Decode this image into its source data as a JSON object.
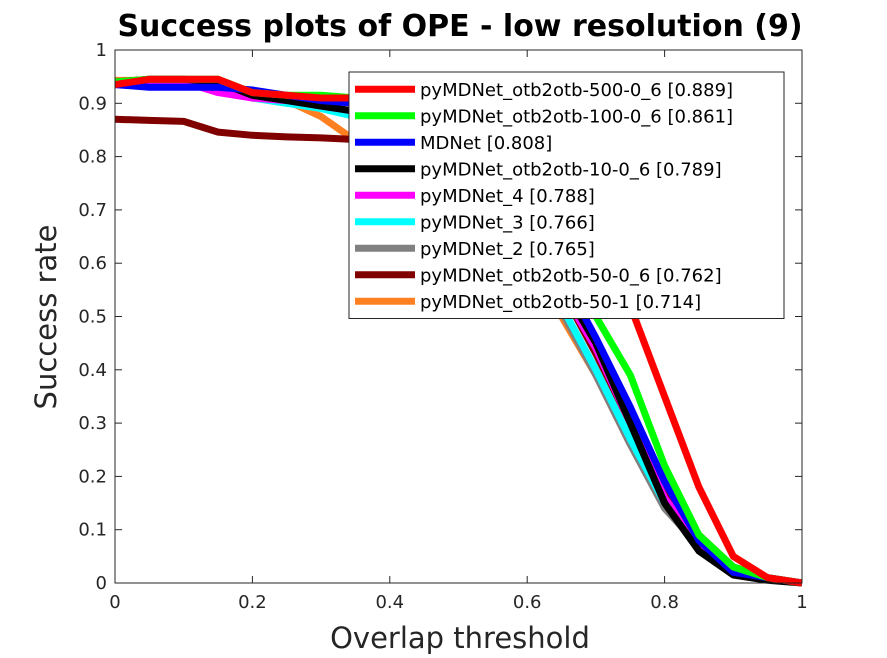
{
  "chart_data": {
    "type": "line",
    "title": "Success plots of OPE - low resolution (9)",
    "xlabel": "Overlap threshold",
    "ylabel": "Success rate",
    "xlim": [
      0,
      1
    ],
    "ylim": [
      0,
      1
    ],
    "xticks": [
      "0",
      "0.2",
      "0.4",
      "0.6",
      "0.8",
      "1"
    ],
    "yticks": [
      "0",
      "0.1",
      "0.2",
      "0.3",
      "0.4",
      "0.5",
      "0.6",
      "0.7",
      "0.8",
      "0.9",
      "1"
    ],
    "grid": false,
    "legend_position": "top-right",
    "x": [
      0,
      0.05,
      0.1,
      0.15,
      0.2,
      0.25,
      0.3,
      0.35,
      0.4,
      0.45,
      0.5,
      0.55,
      0.6,
      0.65,
      0.7,
      0.75,
      0.8,
      0.85,
      0.9,
      0.95,
      1
    ],
    "series": [
      {
        "name": "pyMDNet_otb2otb-500-0_6 [0.889]",
        "color": "#ff0000",
        "values": [
          0.935,
          0.945,
          0.945,
          0.945,
          0.92,
          0.915,
          0.91,
          0.91,
          0.905,
          0.9,
          0.89,
          0.87,
          0.83,
          0.76,
          0.65,
          0.52,
          0.35,
          0.18,
          0.05,
          0.01,
          0
        ]
      },
      {
        "name": "pyMDNet_otb2otb-100-0_6 [0.861]",
        "color": "#00ff00",
        "values": [
          0.94,
          0.945,
          0.945,
          0.945,
          0.92,
          0.915,
          0.915,
          0.91,
          0.905,
          0.89,
          0.86,
          0.8,
          0.71,
          0.6,
          0.5,
          0.39,
          0.22,
          0.09,
          0.03,
          0.01,
          0
        ]
      },
      {
        "name": "MDNet [0.808]",
        "color": "#0000ff",
        "values": [
          0.935,
          0.93,
          0.93,
          0.93,
          0.925,
          0.915,
          0.905,
          0.9,
          0.895,
          0.88,
          0.84,
          0.78,
          0.68,
          0.58,
          0.46,
          0.33,
          0.19,
          0.08,
          0.02,
          0.01,
          0
        ]
      },
      {
        "name": "pyMDNet_otb2otb-10-0_6 [0.789]",
        "color": "#000000",
        "values": [
          0.94,
          0.945,
          0.945,
          0.94,
          0.915,
          0.905,
          0.895,
          0.885,
          0.87,
          0.85,
          0.81,
          0.75,
          0.66,
          0.56,
          0.45,
          0.3,
          0.15,
          0.06,
          0.015,
          0.005,
          0
        ]
      },
      {
        "name": "pyMDNet_4 [0.788]",
        "color": "#ff00ff",
        "values": [
          0.94,
          0.94,
          0.94,
          0.92,
          0.91,
          0.905,
          0.895,
          0.885,
          0.87,
          0.84,
          0.8,
          0.74,
          0.65,
          0.55,
          0.44,
          0.3,
          0.16,
          0.07,
          0.02,
          0.01,
          0
        ]
      },
      {
        "name": "pyMDNet_3 [0.766]",
        "color": "#00ffff",
        "values": [
          0.94,
          0.94,
          0.94,
          0.93,
          0.91,
          0.9,
          0.89,
          0.875,
          0.86,
          0.83,
          0.78,
          0.71,
          0.62,
          0.52,
          0.4,
          0.27,
          0.15,
          0.07,
          0.02,
          0.01,
          0
        ]
      },
      {
        "name": "pyMDNet_2 [0.765]",
        "color": "#808080",
        "values": [
          0.94,
          0.94,
          0.94,
          0.93,
          0.91,
          0.9,
          0.895,
          0.88,
          0.86,
          0.83,
          0.78,
          0.71,
          0.61,
          0.51,
          0.39,
          0.26,
          0.14,
          0.07,
          0.02,
          0.01,
          0
        ]
      },
      {
        "name": "pyMDNet_otb2otb-50-0_6 [0.762]",
        "color": "#800000",
        "values": [
          0.87,
          0.868,
          0.866,
          0.846,
          0.84,
          0.837,
          0.835,
          0.832,
          0.826,
          0.81,
          0.78,
          0.73,
          0.65,
          0.55,
          0.43,
          0.3,
          0.17,
          0.09,
          0.03,
          0.01,
          0
        ]
      },
      {
        "name": "pyMDNet_otb2otb-50-1 [0.714]",
        "color": "#ff8020",
        "values": [
          0.943,
          0.943,
          0.94,
          0.935,
          0.915,
          0.905,
          0.875,
          0.83,
          0.77,
          0.72,
          0.68,
          0.64,
          0.58,
          0.5,
          0.39,
          0.26,
          0.15,
          0.08,
          0.03,
          0.01,
          0
        ]
      }
    ]
  }
}
